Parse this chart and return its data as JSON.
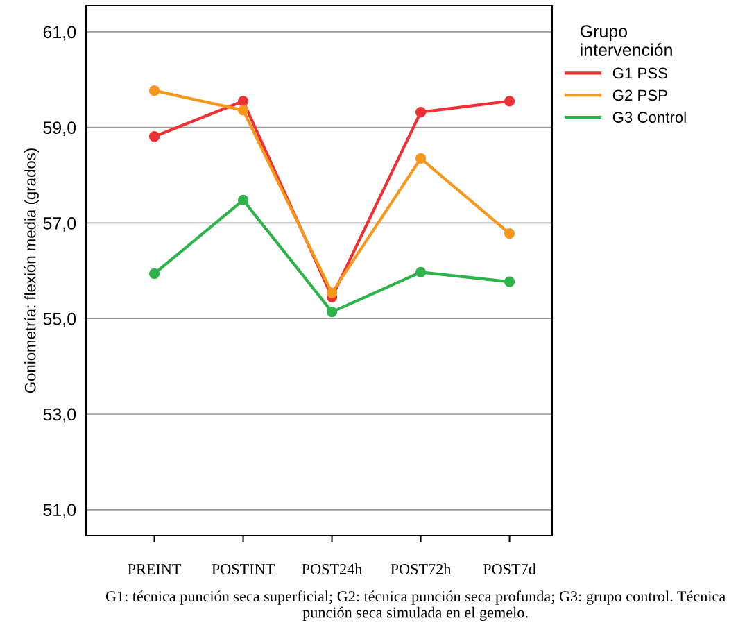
{
  "chart_data": {
    "type": "line",
    "ylabel": "Goniometría: flexión media (grados)",
    "legend_title": "Grupo\nintervención",
    "categories": [
      "PREINT",
      "POSTINT",
      "POST24h",
      "POST72h",
      "POST7d"
    ],
    "series": [
      {
        "name": "G1 PSS",
        "color": "#ee3135",
        "values": [
          58.81,
          59.55,
          55.45,
          59.32,
          59.55
        ]
      },
      {
        "name": "G2 PSP",
        "color": "#f7981d",
        "values": [
          59.77,
          59.36,
          55.54,
          58.35,
          56.78
        ]
      },
      {
        "name": "G3 Control",
        "color": "#2db34a",
        "values": [
          55.94,
          57.48,
          55.14,
          55.97,
          55.77
        ]
      }
    ],
    "ylim": [
      50.46,
      61.55
    ],
    "yticks": [
      {
        "value": 51,
        "label": "51,0"
      },
      {
        "value": 53,
        "label": "53,0"
      },
      {
        "value": 55,
        "label": "55,0"
      },
      {
        "value": 57,
        "label": "57,0"
      },
      {
        "value": 59,
        "label": "59,0"
      },
      {
        "value": 61,
        "label": "61,0"
      }
    ],
    "grid": "y",
    "legend": "top right",
    "marker": "circle",
    "line_style": "solid",
    "annotations": [
      "G1: técnica punción seca superficial; G2: técnica punción seca profunda; G3: grupo control. Técnica punción seca simulada en el gemelo."
    ]
  }
}
